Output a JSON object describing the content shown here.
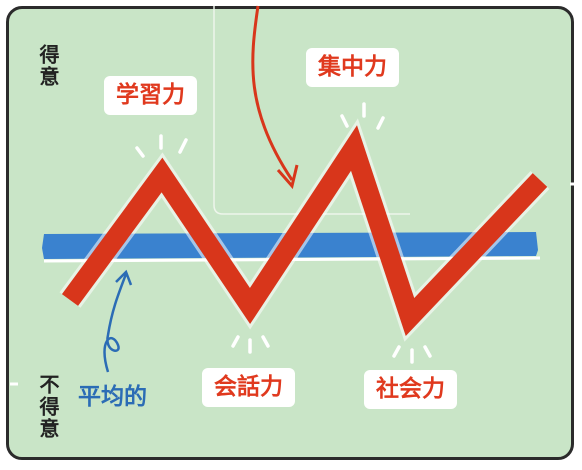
{
  "axis": {
    "top_label": "得意",
    "bottom_label": "不得意"
  },
  "baseline": {
    "label": "平均的"
  },
  "peaks": [
    {
      "label": "学習力",
      "level": "high"
    },
    {
      "label": "会話力",
      "level": "low"
    },
    {
      "label": "集中力",
      "level": "high"
    },
    {
      "label": "社会力",
      "level": "low"
    }
  ],
  "colors": {
    "background": "#c9e5c7",
    "zigzag": "#d8361b",
    "average_band": "#3a82cf",
    "label_text": "#e0391e",
    "average_text": "#2b6cb5"
  }
}
